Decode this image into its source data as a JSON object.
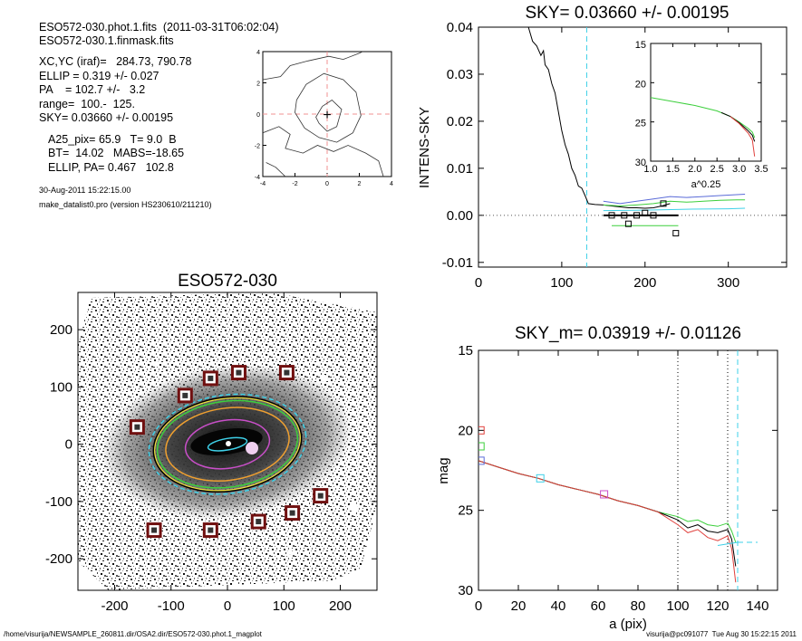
{
  "header": {
    "file_line": "ESO572-030.phot.1.fits  (2011-03-31T06:02:04)",
    "mask_line": "ESO572-030.1.finmask.fits",
    "lines": [
      "XC,YC (iraf)=   284.73, 790.78",
      "ELLIP = 0.319 +/- 0.027",
      "PA    = 102.7 +/-   3.2",
      "range=  100.-  125.",
      "SKY= 0.03660 +/- 0.00195"
    ],
    "lines2": [
      "A25_pix= 65.9   T= 9.0  B",
      "BT=  14.02   MABS=-18.65",
      "ELLIP, PA= 0.467   102.8"
    ],
    "date": "30-Aug-2011 15:22:15.00",
    "program": "make_datalist0.pro (version HS230610/211210)"
  },
  "footer": {
    "left": "/home/visurija/NEWSAMPLE_260811.dir/OSA2.dir/ESO572-030.phot.1_magplot",
    "right": "visurija@pc091077  Tue Aug 30 15:22:15 2011"
  },
  "colors": {
    "black": "#000000",
    "blue": "#5a6bd8",
    "green": "#3ccf3c",
    "red": "#e0403c",
    "cyan": "#3ed0e8",
    "magenta": "#c84fc8",
    "orange": "#f0a030",
    "yellow": "#f0e040",
    "dark_red": "#701010",
    "pink_dash": "#f09090"
  },
  "chart_data": [
    {
      "id": "contour",
      "type": "contour",
      "title": "",
      "xlim": [
        -4,
        4
      ],
      "ylim": [
        -4,
        4
      ],
      "xticks": [
        "-4",
        "-2",
        "0",
        "2",
        "4"
      ],
      "yticks": [
        "-4",
        "-2",
        "0",
        "2",
        "4"
      ],
      "center": [
        0,
        0
      ],
      "contours": [
        [
          [
            -0.3,
            0.5
          ],
          [
            0.3,
            0.9
          ],
          [
            0.9,
            0.3
          ],
          [
            0.6,
            -0.8
          ],
          [
            0.0,
            -1.1
          ],
          [
            -0.5,
            -0.6
          ],
          [
            -0.7,
            -0.2
          ],
          [
            -0.3,
            0.5
          ]
        ],
        [
          [
            -1.9,
            0.9
          ],
          [
            -1.3,
            1.9
          ],
          [
            -0.2,
            2.6
          ],
          [
            1.0,
            2.2
          ],
          [
            1.8,
            1.4
          ],
          [
            2.1,
            -0.1
          ],
          [
            1.6,
            -1.2
          ],
          [
            0.6,
            -1.8
          ],
          [
            -0.5,
            -1.5
          ],
          [
            -1.4,
            -0.9
          ],
          [
            -2.0,
            0.1
          ],
          [
            -1.9,
            0.9
          ]
        ],
        [
          [
            -4,
            2.2
          ],
          [
            -2.9,
            2.4
          ],
          [
            -2.3,
            3.1
          ],
          [
            -1.2,
            3.4
          ],
          [
            0.1,
            3.7
          ],
          [
            1.0,
            3.5
          ],
          [
            2.0,
            3.9
          ],
          [
            2.2,
            4
          ]
        ],
        [
          [
            -4,
            -1.2
          ],
          [
            -3.0,
            -0.8
          ],
          [
            -2.3,
            -1.3
          ],
          [
            -2.6,
            -2.2
          ],
          [
            -1.5,
            -2.5
          ],
          [
            -0.6,
            -2.0
          ],
          [
            0.4,
            -2.4
          ],
          [
            1.3,
            -2.0
          ],
          [
            2.4,
            -2.5
          ],
          [
            3.2,
            -3.0
          ],
          [
            3.5,
            -4
          ]
        ],
        [
          [
            -3.8,
            -3.1
          ],
          [
            -3.2,
            -3.4
          ],
          [
            -2.6,
            -4
          ]
        ]
      ]
    },
    {
      "id": "sky",
      "type": "line",
      "title": "SKY= 0.03660 +/- 0.00195",
      "ylabel": "INTENS-SKY",
      "xlabel": "",
      "xlim": [
        0,
        370
      ],
      "ylim": [
        -0.011,
        0.04
      ],
      "xticks": [
        "0",
        "100",
        "200",
        "300"
      ],
      "yticks": [
        "-0.01",
        "0.00",
        "0.01",
        "0.02",
        "0.03",
        "0.04"
      ],
      "vline": 130,
      "series": [
        {
          "color": "black",
          "x": [
            60,
            65,
            70,
            75,
            78,
            80,
            84,
            88,
            92,
            96,
            100,
            104,
            108,
            112,
            116,
            120,
            124,
            128,
            132,
            140,
            150,
            160,
            170,
            180,
            190,
            200,
            210,
            220,
            230
          ],
          "y": [
            0.04,
            0.037,
            0.036,
            0.034,
            0.035,
            0.032,
            0.031,
            0.028,
            0.026,
            0.022,
            0.018,
            0.015,
            0.013,
            0.01,
            0.0085,
            0.0062,
            0.0058,
            0.0042,
            0.0025,
            0.0023,
            0.0022,
            0.002,
            0.0018,
            0.0016,
            0.0016,
            0.0015,
            0.0016,
            0.002,
            0.0025
          ]
        },
        {
          "color": "blue",
          "x": [
            150,
            170,
            190,
            210,
            230,
            250,
            270,
            290,
            310,
            320
          ],
          "y": [
            0.003,
            0.0025,
            0.003,
            0.0035,
            0.004,
            0.0038,
            0.004,
            0.0042,
            0.0044,
            0.0045
          ]
        },
        {
          "color": "green",
          "x": [
            150,
            170,
            190,
            210,
            230,
            250,
            270,
            290,
            310,
            320
          ],
          "y": [
            0.0022,
            0.002,
            0.0022,
            0.0025,
            0.003,
            0.0028,
            0.003,
            0.0032,
            0.0033,
            0.0033
          ]
        },
        {
          "color": "green",
          "x": [
            160,
            240
          ],
          "y": [
            -0.0022,
            -0.0022
          ]
        },
        {
          "color": "cyan",
          "x": [
            150,
            200,
            250,
            300,
            320
          ],
          "y": [
            0.001,
            0.0011,
            0.0013,
            0.0014,
            0.0015
          ]
        }
      ],
      "squares": [
        [
          160,
          0.0
        ],
        [
          175,
          0.0
        ],
        [
          180,
          -0.0018
        ],
        [
          190,
          0.0
        ],
        [
          200,
          0.0005
        ],
        [
          210,
          0.0
        ],
        [
          222,
          0.0025
        ],
        [
          237,
          -0.0038
        ]
      ],
      "squares_color": "black",
      "inset": {
        "xlabel": "a^0.25",
        "xlim": [
          1.0,
          3.5
        ],
        "ylim": [
          30,
          15
        ],
        "xticks": [
          "1.0",
          "1.5",
          "2.0",
          "2.5",
          "3.0",
          "3.5"
        ],
        "yticks": [
          "15",
          "20",
          "25",
          "30"
        ],
        "series": [
          {
            "color": "green",
            "x": [
              1.0,
              1.5,
              2.0,
              2.5,
              2.8,
              3.0,
              3.1,
              3.2,
              3.3,
              3.35
            ],
            "y": [
              21.9,
              22.4,
              22.9,
              23.6,
              24.3,
              25.0,
              25.4,
              25.8,
              26.3,
              27.0
            ]
          },
          {
            "color": "black",
            "x": [
              2.6,
              2.8,
              3.0,
              3.1,
              3.2,
              3.3,
              3.35
            ],
            "y": [
              23.8,
              24.3,
              25.1,
              25.6,
              26.1,
              26.7,
              27.5
            ]
          },
          {
            "color": "red",
            "x": [
              2.8,
              3.0,
              3.1,
              3.2,
              3.3,
              3.35
            ],
            "y": [
              24.3,
              25.2,
              25.8,
              26.4,
              27.3,
              29.4
            ]
          }
        ]
      }
    },
    {
      "id": "image",
      "type": "image",
      "title": "ESO572-030",
      "xlim": [
        -265,
        265
      ],
      "ylim": [
        -255,
        265
      ],
      "xticks": [
        "-200",
        "-100",
        "0",
        "100",
        "200"
      ],
      "yticks": [
        "-200",
        "-100",
        "0",
        "100",
        "200"
      ],
      "squares": [
        [
          -160,
          30
        ],
        [
          -75,
          85
        ],
        [
          -30,
          115
        ],
        [
          20,
          125
        ],
        [
          105,
          125
        ],
        [
          165,
          -90
        ],
        [
          115,
          -120
        ],
        [
          55,
          -135
        ],
        [
          -30,
          -150
        ],
        [
          -130,
          -150
        ]
      ],
      "ellipses": [
        {
          "color": "cyan",
          "a": 35,
          "b": 10,
          "pa": 10
        },
        {
          "color": "magenta",
          "a": 75,
          "b": 42,
          "pa": 8
        },
        {
          "color": "orange",
          "a": 110,
          "b": 63,
          "pa": 8
        },
        {
          "color": "green",
          "a": 125,
          "b": 75,
          "pa": 8
        },
        {
          "color": "yellow",
          "a": 130,
          "b": 80,
          "pa": 8
        },
        {
          "color": "black",
          "a": 132,
          "b": 82,
          "pa": 8
        },
        {
          "color": "cyan",
          "a": 140,
          "b": 86,
          "pa": 8
        }
      ]
    },
    {
      "id": "mag",
      "type": "line",
      "title": "SKY_m=  0.03919 +/- 0.01126",
      "xlabel": "a (pix)",
      "ylabel": "mag",
      "xlim": [
        0,
        150
      ],
      "ylim": [
        30,
        15
      ],
      "xticks": [
        "0",
        "20",
        "40",
        "60",
        "80",
        "100",
        "120",
        "140"
      ],
      "yticks": [
        "15",
        "20",
        "25",
        "30"
      ],
      "vlines_dotted": [
        100,
        125
      ],
      "vline_dashed": 130,
      "series": [
        {
          "color": "green",
          "x": [
            0,
            10,
            20,
            30,
            40,
            50,
            60,
            70,
            80,
            90,
            100,
            105,
            110,
            115,
            120,
            125,
            127,
            129
          ],
          "y": [
            21.9,
            22.3,
            22.7,
            23.0,
            23.4,
            23.7,
            24.0,
            24.4,
            24.7,
            25.1,
            25.4,
            25.7,
            25.6,
            25.9,
            26.0,
            25.8,
            26.3,
            27.0
          ]
        },
        {
          "color": "black",
          "x": [
            0,
            10,
            20,
            30,
            40,
            50,
            60,
            70,
            80,
            90,
            100,
            105,
            110,
            115,
            120,
            125,
            127,
            129
          ],
          "y": [
            21.9,
            22.3,
            22.7,
            23.0,
            23.4,
            23.7,
            24.0,
            24.4,
            24.7,
            25.1,
            25.6,
            26.1,
            25.9,
            26.3,
            26.4,
            26.2,
            26.8,
            28.5
          ]
        },
        {
          "color": "red",
          "x": [
            0,
            10,
            20,
            30,
            40,
            50,
            60,
            70,
            80,
            90,
            100,
            105,
            110,
            115,
            120,
            125,
            127,
            129
          ],
          "y": [
            21.9,
            22.3,
            22.7,
            23.0,
            23.4,
            23.7,
            24.0,
            24.4,
            24.7,
            25.1,
            25.9,
            26.4,
            26.2,
            26.7,
            26.9,
            26.6,
            27.4,
            29.5
          ]
        },
        {
          "color": "cyan",
          "x": [
            120,
            130
          ],
          "y": [
            27.2,
            27.0
          ]
        },
        {
          "color": "cyan",
          "x": [
            130,
            140
          ],
          "y": [
            27.0,
            27.0
          ]
        }
      ],
      "squares": [
        {
          "color": "red",
          "x": 1,
          "y": 20.0
        },
        {
          "color": "green",
          "x": 1,
          "y": 21.0
        },
        {
          "color": "blue",
          "x": 1,
          "y": 21.9
        },
        {
          "color": "cyan",
          "x": 31,
          "y": 23.0
        },
        {
          "color": "magenta",
          "x": 63,
          "y": 24.0
        }
      ]
    }
  ]
}
